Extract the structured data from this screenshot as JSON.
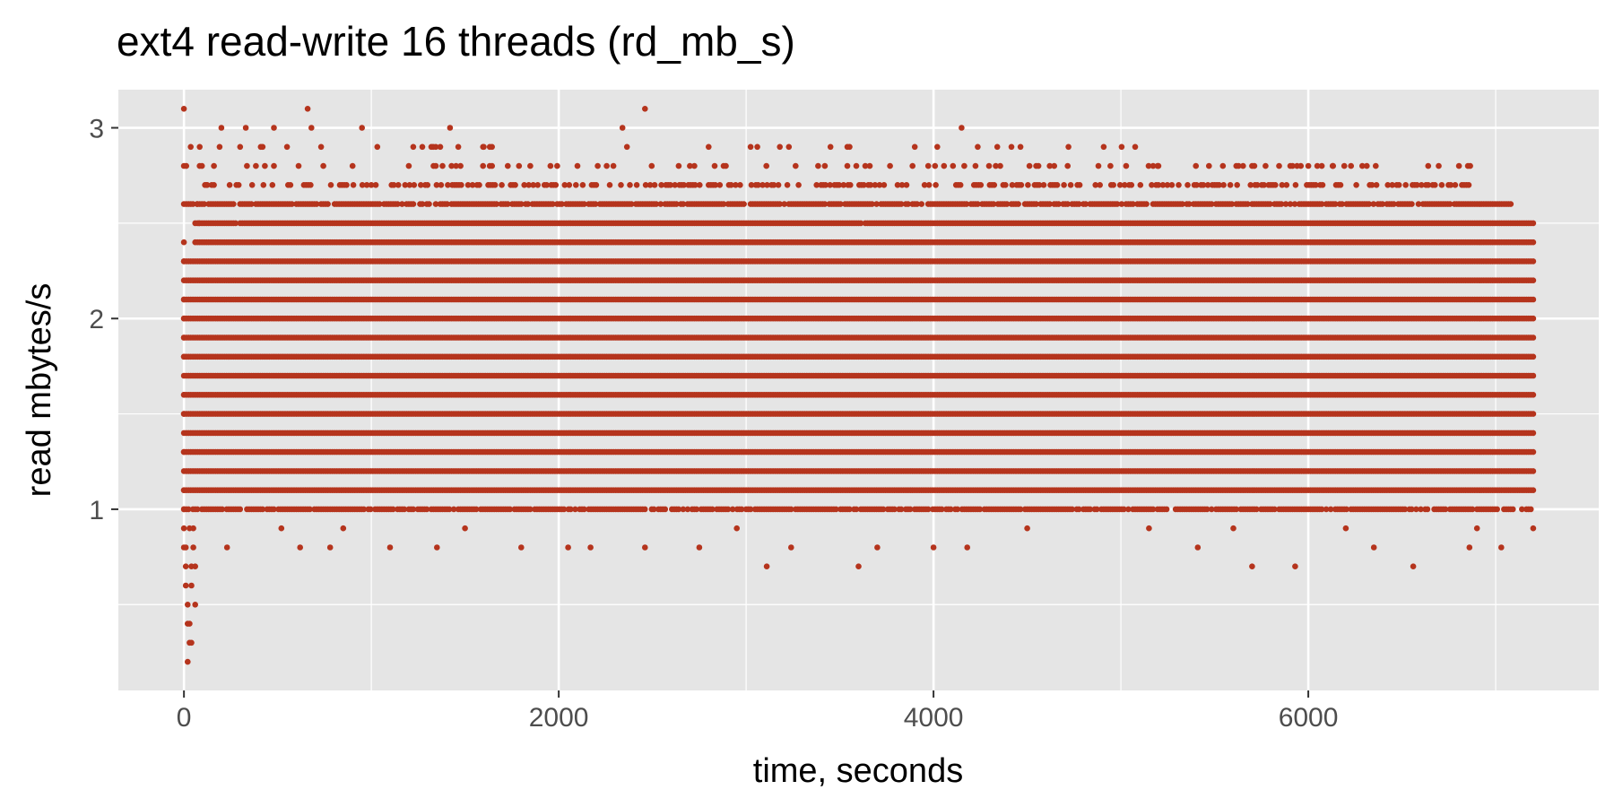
{
  "chart_data": {
    "type": "scatter",
    "title": "ext4 read-write 16 threads (rd_mb_s)",
    "xlabel": "time, seconds",
    "ylabel": "read mbytes/s",
    "xlim": [
      -350,
      7550
    ],
    "ylim": [
      0.05,
      3.2
    ],
    "x_ticks": [
      0,
      2000,
      4000,
      6000
    ],
    "x_tick_labels": [
      "0",
      "2000",
      "4000",
      "6000"
    ],
    "x_minor_ticks": [
      1000,
      3000,
      5000,
      7000
    ],
    "y_ticks": [
      1,
      2,
      3
    ],
    "y_tick_labels": [
      "1",
      "2",
      "3"
    ],
    "y_minor_ticks": [
      0.5,
      1.5,
      2.5
    ],
    "grid": true,
    "legend": "none",
    "point_color": "#B5341D",
    "panel_color": "#E5E5E5",
    "x_range_observed": [
      0,
      7200
    ],
    "dense_bands": [
      {
        "y": 1.0,
        "x": [
          0,
          7200
        ],
        "coverage": 0.85
      },
      {
        "y": 1.1,
        "x": [
          0,
          7200
        ],
        "coverage": 1.0
      },
      {
        "y": 1.2,
        "x": [
          0,
          7200
        ],
        "coverage": 1.0
      },
      {
        "y": 1.3,
        "x": [
          0,
          7200
        ],
        "coverage": 1.0
      },
      {
        "y": 1.4,
        "x": [
          0,
          7200
        ],
        "coverage": 1.0
      },
      {
        "y": 1.5,
        "x": [
          0,
          7200
        ],
        "coverage": 1.0
      },
      {
        "y": 1.6,
        "x": [
          0,
          7200
        ],
        "coverage": 1.0
      },
      {
        "y": 1.7,
        "x": [
          0,
          7200
        ],
        "coverage": 1.0
      },
      {
        "y": 1.8,
        "x": [
          0,
          7200
        ],
        "coverage": 1.0
      },
      {
        "y": 1.9,
        "x": [
          0,
          7200
        ],
        "coverage": 1.0
      },
      {
        "y": 2.0,
        "x": [
          0,
          7200
        ],
        "coverage": 1.0
      },
      {
        "y": 2.1,
        "x": [
          0,
          7200
        ],
        "coverage": 1.0
      },
      {
        "y": 2.2,
        "x": [
          0,
          7200
        ],
        "coverage": 1.0
      },
      {
        "y": 2.3,
        "x": [
          0,
          7200
        ],
        "coverage": 1.0
      },
      {
        "y": 2.4,
        "x": [
          60,
          7200
        ],
        "coverage": 1.0
      },
      {
        "y": 2.5,
        "x": [
          60,
          7200
        ],
        "coverage": 0.98
      },
      {
        "y": 2.6,
        "x": [
          0,
          7100
        ],
        "coverage": 0.85
      },
      {
        "y": 2.7,
        "x": [
          100,
          6900
        ],
        "coverage": 0.45
      },
      {
        "y": 2.8,
        "x": [
          0,
          6900
        ],
        "coverage": 0.18
      },
      {
        "y": 2.9,
        "x": [
          0,
          5200
        ],
        "coverage": 0.06
      }
    ],
    "points": [
      [
        0,
        3.1
      ],
      [
        0,
        2.8
      ],
      [
        0,
        2.6
      ],
      [
        0,
        2.4
      ],
      [
        0,
        2.3
      ],
      [
        0,
        2.1
      ],
      [
        0,
        2.0
      ],
      [
        0,
        1.9
      ],
      [
        0,
        1.8
      ],
      [
        0,
        1.6
      ],
      [
        0,
        1.5
      ],
      [
        0,
        1.3
      ],
      [
        0,
        1.1
      ],
      [
        0,
        1.0
      ],
      [
        0,
        0.9
      ],
      [
        0,
        0.8
      ],
      [
        10,
        0.7
      ],
      [
        10,
        0.6
      ],
      [
        20,
        0.5
      ],
      [
        20,
        0.4
      ],
      [
        30,
        0.3
      ],
      [
        20,
        0.2
      ],
      [
        10,
        0.8
      ],
      [
        30,
        0.9
      ],
      [
        40,
        0.7
      ],
      [
        40,
        0.6
      ],
      [
        50,
        0.8
      ],
      [
        50,
        0.9
      ],
      [
        60,
        0.7
      ],
      [
        60,
        0.5
      ],
      [
        30,
        0.4
      ],
      [
        40,
        0.3
      ],
      [
        80,
        2.5
      ],
      [
        70,
        2.6
      ],
      [
        120,
        2.7
      ],
      [
        160,
        2.8
      ],
      [
        190,
        2.9
      ],
      [
        200,
        3.0
      ],
      [
        230,
        0.8
      ],
      [
        330,
        3.0
      ],
      [
        410,
        2.9
      ],
      [
        480,
        3.0
      ],
      [
        550,
        2.9
      ],
      [
        620,
        0.8
      ],
      [
        660,
        3.1
      ],
      [
        680,
        3.0
      ],
      [
        780,
        0.8
      ],
      [
        950,
        3.0
      ],
      [
        1100,
        0.8
      ],
      [
        1330,
        2.9
      ],
      [
        1420,
        3.0
      ],
      [
        1350,
        0.8
      ],
      [
        1800,
        0.8
      ],
      [
        2050,
        0.8
      ],
      [
        2170,
        0.8
      ],
      [
        2340,
        3.0
      ],
      [
        2460,
        3.1
      ],
      [
        2460,
        0.8
      ],
      [
        2750,
        0.8
      ],
      [
        3110,
        0.7
      ],
      [
        3240,
        0.8
      ],
      [
        3450,
        2.9
      ],
      [
        3600,
        0.7
      ],
      [
        3540,
        2.9
      ],
      [
        4150,
        3.0
      ],
      [
        4340,
        2.9
      ],
      [
        4000,
        0.8
      ],
      [
        4180,
        0.8
      ],
      [
        4720,
        2.9
      ],
      [
        5200,
        2.8
      ],
      [
        5410,
        0.8
      ],
      [
        5700,
        0.7
      ],
      [
        5930,
        0.7
      ],
      [
        6560,
        0.7
      ],
      [
        6640,
        2.8
      ],
      [
        6350,
        0.8
      ],
      [
        6860,
        0.8
      ],
      [
        7030,
        0.8
      ],
      [
        7200,
        0.9
      ],
      [
        4880,
        2.8
      ],
      [
        5470,
        2.8
      ],
      [
        5960,
        2.8
      ],
      [
        6130,
        2.8
      ],
      [
        2800,
        2.9
      ],
      [
        1600,
        2.9
      ],
      [
        3900,
        2.9
      ],
      [
        2950,
        0.9
      ],
      [
        4500,
        0.9
      ],
      [
        5600,
        0.9
      ],
      [
        6200,
        0.9
      ],
      [
        6900,
        0.9
      ],
      [
        1500,
        0.9
      ],
      [
        850,
        0.9
      ],
      [
        520,
        0.9
      ],
      [
        3700,
        0.8
      ],
      [
        5150,
        0.9
      ]
    ]
  }
}
